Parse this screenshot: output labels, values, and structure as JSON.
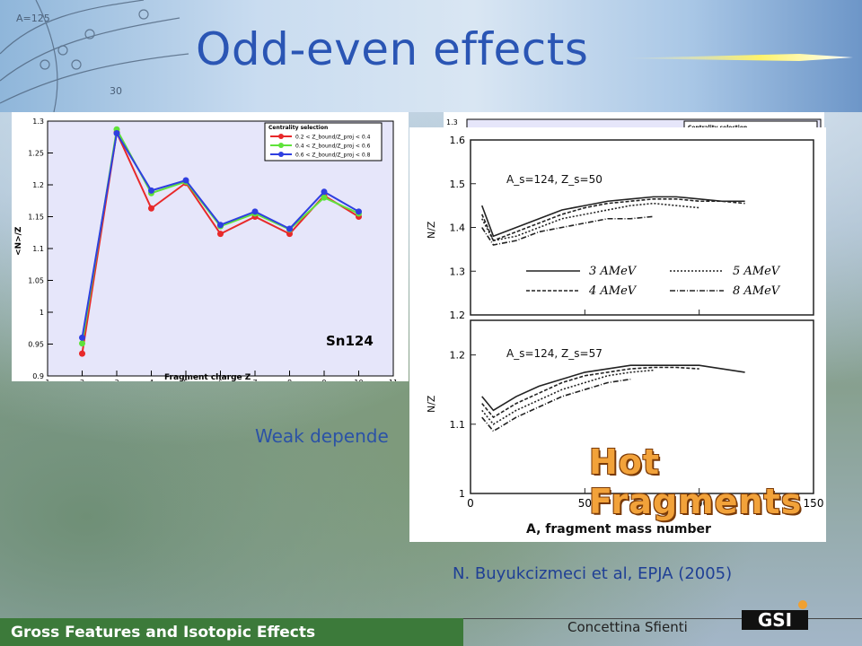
{
  "slide": {
    "title": "Odd-even effects",
    "weak_text": "Weak depende",
    "citation": "N. Buyukcizmeci  et al, EPJA (2005)",
    "footer_left": "Gross Features and Isotopic Effects",
    "footer_right": "Concettina Sfienti",
    "logo_text": "GSI",
    "hot_label": "Hot Fragments",
    "bg_text_a": "A=125",
    "bg_text_b": "30"
  },
  "chart_data": [
    {
      "type": "line",
      "title": "",
      "xlabel": "Fragment charge Z",
      "ylabel": "<N>/Z",
      "xlim": [
        1,
        11
      ],
      "ylim": [
        0.9,
        1.3
      ],
      "x_ticks": [
        "1",
        "2",
        "3",
        "4",
        "5",
        "6",
        "7",
        "8",
        "9",
        "10",
        "11"
      ],
      "y_ticks": [
        "0.9",
        "0.95",
        "1",
        "1.05",
        "1.1",
        "1.15",
        "1.2",
        "1.25",
        "1.3"
      ],
      "annotation": "Sn124",
      "legend_title": "Centrality selection",
      "legend_position": "top-right",
      "x": [
        2,
        3,
        4,
        5,
        6,
        7,
        8,
        9,
        10
      ],
      "series": [
        {
          "name": "0.2 < Z_bound/Z_proj < 0.4",
          "color": "#e8292a",
          "values": [
            0.935,
            1.282,
            1.163,
            1.203,
            1.123,
            1.15,
            1.123,
            1.183,
            1.15
          ]
        },
        {
          "name": "0.4 < Z_bound/Z_proj < 0.6",
          "color": "#5fe23a",
          "values": [
            0.951,
            1.287,
            1.187,
            1.205,
            1.135,
            1.155,
            1.13,
            1.18,
            1.155
          ]
        },
        {
          "name": "0.6 < Z_bound/Z_proj < 0.8",
          "color": "#2f3fe0",
          "values": [
            0.96,
            1.281,
            1.191,
            1.207,
            1.137,
            1.158,
            1.131,
            1.189,
            1.158
          ]
        }
      ]
    },
    {
      "type": "line",
      "title": "",
      "xlabel": "A, fragment mass number",
      "ylabel": "N/Z",
      "x_ticks": [
        "0",
        "50",
        "100",
        "150"
      ],
      "top_panel": {
        "label": "A_s=124, Z_s=50",
        "ylim": [
          1.2,
          1.6
        ],
        "y_ticks": [
          "1.2",
          "1.3",
          "1.4",
          "1.5",
          "1.6"
        ],
        "legend": [
          "3 AMeV",
          "5 AMeV",
          "4 AMeV",
          "8 AMeV"
        ],
        "series": [
          {
            "name": "3 AMeV",
            "x": [
              5,
              10,
              20,
              30,
              40,
              50,
              60,
              70,
              80,
              90,
              100,
              110,
              120
            ],
            "values": [
              1.45,
              1.38,
              1.4,
              1.42,
              1.44,
              1.45,
              1.46,
              1.465,
              1.47,
              1.47,
              1.465,
              1.46,
              1.46
            ]
          },
          {
            "name": "4 AMeV",
            "x": [
              5,
              10,
              20,
              30,
              40,
              50,
              60,
              70,
              80,
              90,
              100,
              110,
              120
            ],
            "values": [
              1.43,
              1.37,
              1.39,
              1.41,
              1.43,
              1.445,
              1.455,
              1.46,
              1.465,
              1.465,
              1.46,
              1.46,
              1.455
            ]
          },
          {
            "name": "5 AMeV",
            "x": [
              5,
              10,
              20,
              30,
              40,
              50,
              60,
              70,
              80,
              90,
              100
            ],
            "values": [
              1.42,
              1.37,
              1.38,
              1.4,
              1.42,
              1.43,
              1.44,
              1.45,
              1.455,
              1.45,
              1.445
            ]
          },
          {
            "name": "8 AMeV",
            "x": [
              5,
              10,
              20,
              30,
              40,
              50,
              60,
              70,
              80
            ],
            "values": [
              1.4,
              1.36,
              1.37,
              1.39,
              1.4,
              1.41,
              1.42,
              1.42,
              1.425
            ]
          }
        ]
      },
      "bottom_panel": {
        "label": "A_s=124, Z_s=57",
        "ylim": [
          1.0,
          1.25
        ],
        "y_ticks": [
          "1",
          "1.1",
          "1.2"
        ],
        "series": [
          {
            "name": "3 AMeV",
            "x": [
              5,
              10,
              20,
              30,
              40,
              50,
              60,
              70,
              80,
              90,
              100,
              110,
              120
            ],
            "values": [
              1.14,
              1.12,
              1.14,
              1.155,
              1.165,
              1.175,
              1.18,
              1.185,
              1.185,
              1.185,
              1.185,
              1.18,
              1.175
            ]
          },
          {
            "name": "4 AMeV",
            "x": [
              5,
              10,
              20,
              30,
              40,
              50,
              60,
              70,
              80,
              90,
              100
            ],
            "values": [
              1.13,
              1.11,
              1.13,
              1.145,
              1.16,
              1.17,
              1.175,
              1.18,
              1.182,
              1.182,
              1.18
            ]
          },
          {
            "name": "5 AMeV",
            "x": [
              5,
              10,
              20,
              30,
              40,
              50,
              60,
              70,
              80
            ],
            "values": [
              1.12,
              1.1,
              1.12,
              1.135,
              1.15,
              1.16,
              1.17,
              1.175,
              1.178
            ]
          },
          {
            "name": "8 AMeV",
            "x": [
              5,
              10,
              20,
              30,
              40,
              50,
              60,
              70
            ],
            "values": [
              1.11,
              1.09,
              1.11,
              1.125,
              1.14,
              1.15,
              1.16,
              1.165
            ]
          }
        ]
      }
    }
  ]
}
